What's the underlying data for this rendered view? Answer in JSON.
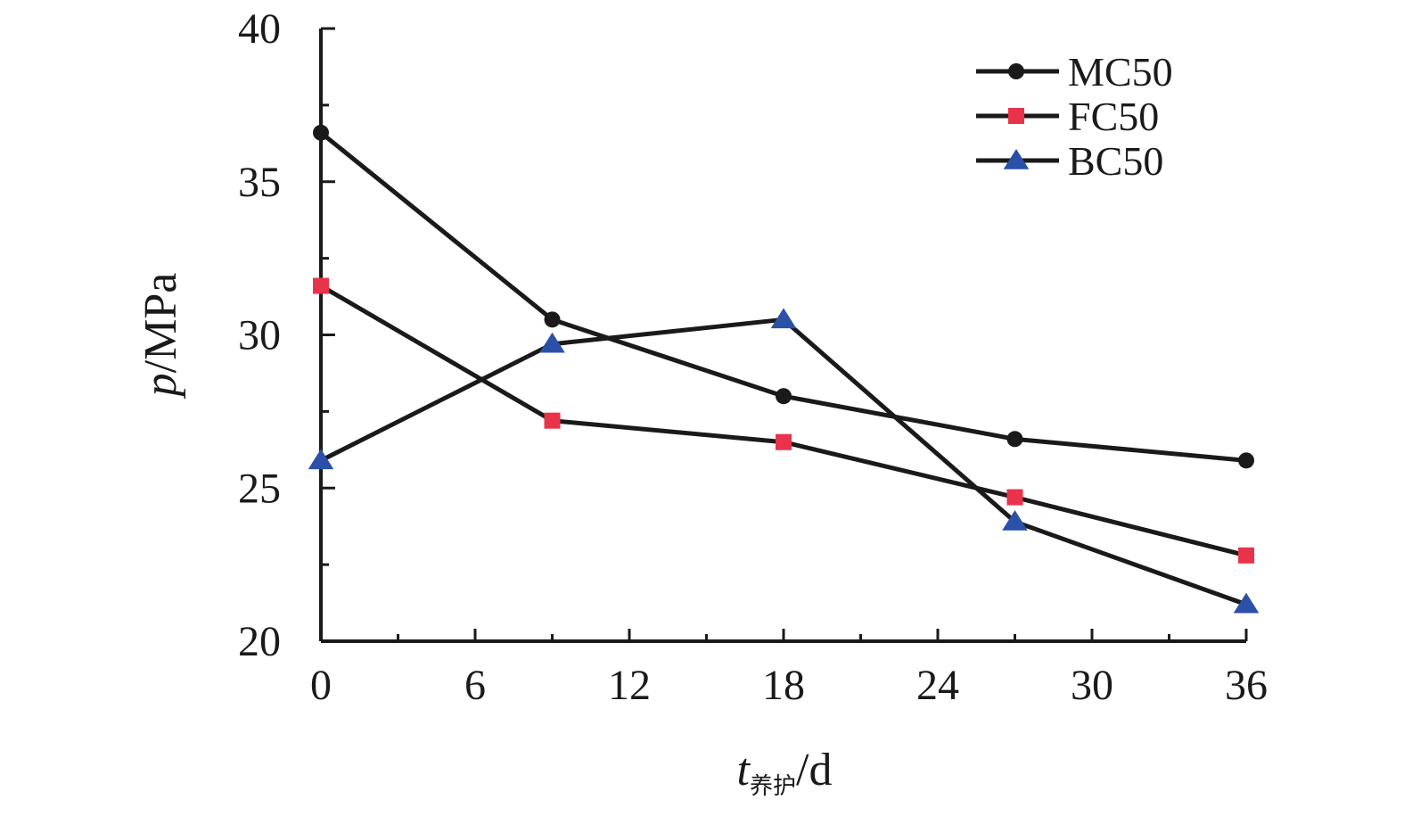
{
  "chart_data": {
    "type": "line",
    "x": [
      0,
      9,
      18,
      27,
      36
    ],
    "xlim": [
      0,
      36
    ],
    "ylim": [
      20,
      40
    ],
    "xticks": [
      0,
      6,
      12,
      18,
      24,
      30,
      36
    ],
    "yticks": [
      20,
      25,
      30,
      35,
      40
    ],
    "xlabel": {
      "var": "t",
      "sub": "养护",
      "unit": "/d"
    },
    "ylabel": {
      "var": "p",
      "unit": "/MPa"
    },
    "grid": false,
    "legend_position": "top-right",
    "series": [
      {
        "name": "MC50",
        "marker": "circle",
        "marker_color": "#1a1a1a",
        "values": [
          36.6,
          30.5,
          28.0,
          26.6,
          25.9
        ]
      },
      {
        "name": "FC50",
        "marker": "square",
        "marker_color": "#e8334a",
        "values": [
          31.6,
          27.2,
          26.5,
          24.7,
          22.8
        ]
      },
      {
        "name": "BC50",
        "marker": "triangle",
        "marker_color": "#2b50a8",
        "values": [
          25.9,
          29.7,
          30.5,
          23.9,
          21.2
        ]
      }
    ],
    "line_color": "#1a1a1a"
  }
}
